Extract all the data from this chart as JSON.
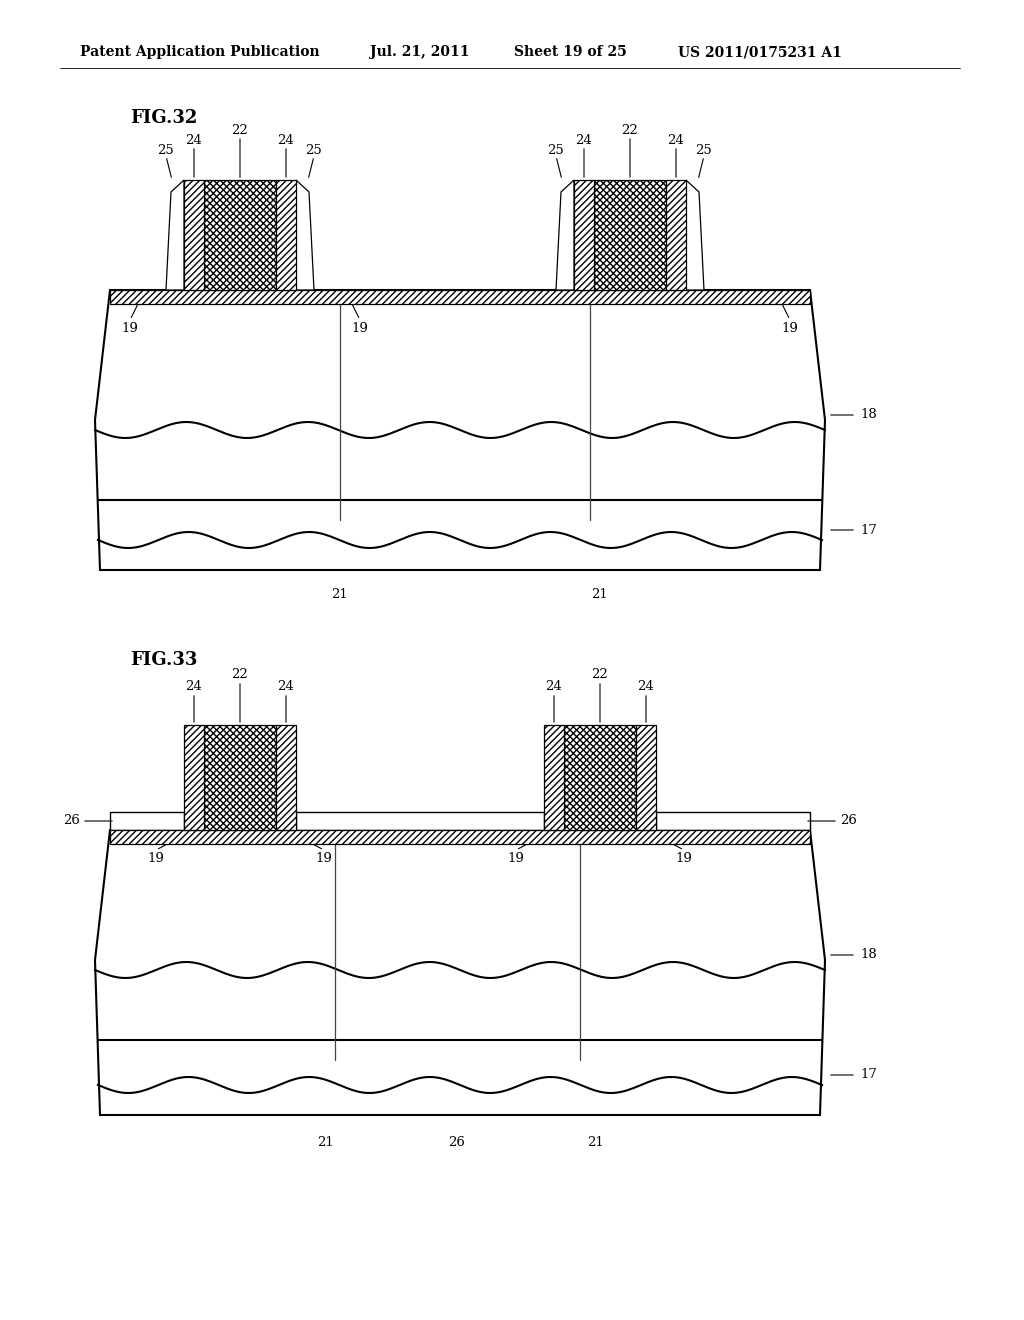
{
  "title_header": "Patent Application Publication",
  "date_header": "Jul. 21, 2011",
  "sheet_header": "Sheet 19 of 25",
  "patent_header": "US 2011/0175231 A1",
  "fig32_label": "FIG.32",
  "fig33_label": "FIG.33",
  "bg_color": "#ffffff",
  "line_color": "#000000",
  "fig_width": 10.24,
  "fig_height": 13.2
}
